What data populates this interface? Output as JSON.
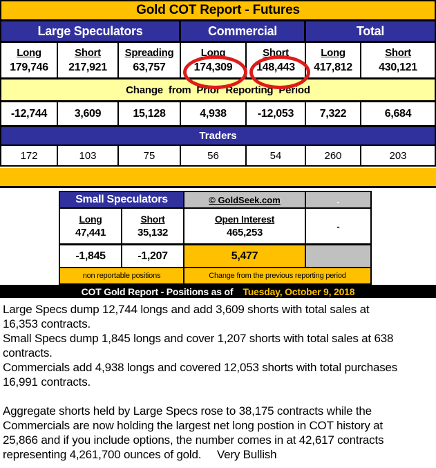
{
  "title": "Gold COT Report - Futures",
  "colors": {
    "gold": "#FFC000",
    "navy": "#31319E",
    "cream": "#FFFFA0",
    "gray": "#C0C0C0",
    "red_circle": "#DE1B1B",
    "date_text": "#FFC000"
  },
  "main_table": {
    "groups": [
      "Large Speculators",
      "Commercial",
      "Total"
    ],
    "columns": [
      "Long",
      "Short",
      "Spreading",
      "Long",
      "Short",
      "Long",
      "Short"
    ],
    "positions": [
      "179,746",
      "217,921",
      "63,757",
      "174,309",
      "148,443",
      "417,812",
      "430,121"
    ],
    "change_header": "Change from Prior Reporting Period",
    "changes": [
      "-12,744",
      "3,609",
      "15,128",
      "4,938",
      "-12,053",
      "7,322",
      "6,684"
    ],
    "traders_header": "Traders",
    "traders": [
      "172",
      "103",
      "75",
      "56",
      "54",
      "260",
      "203"
    ]
  },
  "annotations": {
    "circled_values": [
      "174,309",
      "148,443"
    ]
  },
  "small_table": {
    "header": "Small Speculators",
    "copyright": "© GoldSeek.com",
    "columns": [
      "Long",
      "Short",
      "Open Interest"
    ],
    "values": [
      "47,441",
      "35,132",
      "465,253"
    ],
    "placeholder_dash": "-",
    "changes": [
      "-1,845",
      "-1,207",
      "5,477"
    ],
    "footnote_left": "non reportable positions",
    "footnote_right": "Change from the previous reporting period"
  },
  "footer_band": {
    "label": "COT Gold Report - Positions as of",
    "date": "Tuesday, October 9, 2018"
  },
  "commentary": {
    "lines": [
      "Large Specs dump 12,744 longs and add 3,609 shorts with total sales at",
      "16,353 contracts.",
      "Small Specs dump 1,845 longs and cover 1,207 shorts with total sales at 638",
      "contracts.",
      "Commercials add 4,938 longs and covered 12,053 shorts with total purchases",
      "16,991 contracts.",
      "",
      "Aggregate shorts held by Large Specs rose to 38,175 contracts while the",
      "Commercials are now holding the largest net long postion in COT history at",
      "25,866 and if you include options, the number comes in at 42,617 contracts",
      "representing 4,261,700 ounces of gold.     Very Bullish"
    ]
  }
}
